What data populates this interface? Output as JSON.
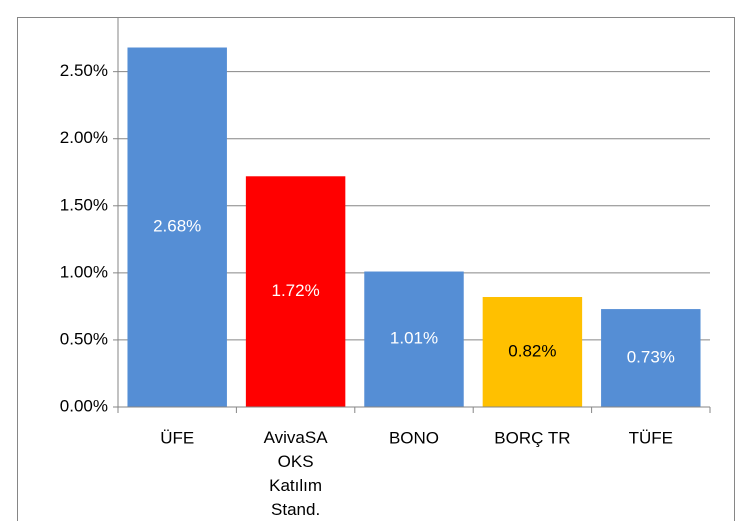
{
  "chart_data": {
    "type": "bar",
    "categories": [
      "ÜFE",
      "AvivaSA OKS Katılım Stand.",
      "BONO",
      "BORÇ TR",
      "TÜFE"
    ],
    "values": [
      2.68,
      1.72,
      1.01,
      0.82,
      0.73
    ],
    "value_labels": [
      "2.68%",
      "1.72%",
      "1.01%",
      "0.82%",
      "0.73%"
    ],
    "colors": [
      "#558ed5",
      "#ff0000",
      "#558ed5",
      "#ffc000",
      "#558ed5"
    ],
    "ylim": [
      0,
      2.9
    ],
    "yticks": [
      {
        "value": 0,
        "label": "0.00%"
      },
      {
        "value": 0.5,
        "label": "0.50%"
      },
      {
        "value": 1,
        "label": "1.00%"
      },
      {
        "value": 1.5,
        "label": "1.50%"
      },
      {
        "value": 2,
        "label": "2.00%"
      },
      {
        "value": 2.5,
        "label": "2.50%"
      }
    ],
    "grid": true
  }
}
